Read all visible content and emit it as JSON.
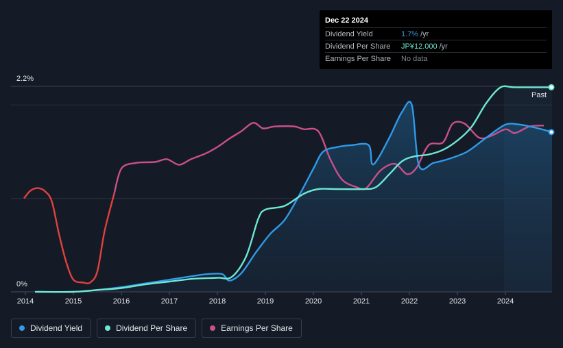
{
  "tooltip": {
    "date": "Dec 22 2024",
    "rows": [
      {
        "label": "Dividend Yield",
        "value": "1.7%",
        "unit": "/yr",
        "color": "#2f9be9"
      },
      {
        "label": "Dividend Per Share",
        "value": "JP¥12.000",
        "unit": "/yr",
        "color": "#6ee7d2"
      },
      {
        "label": "Earnings Per Share",
        "value": "No data",
        "unit": "",
        "color": "#7e848c"
      }
    ]
  },
  "legend": [
    {
      "label": "Dividend Yield",
      "color": "#2f9be9"
    },
    {
      "label": "Dividend Per Share",
      "color": "#6ee7d2"
    },
    {
      "label": "Earnings Per Share",
      "color": "#c9508a"
    }
  ],
  "chart_data": {
    "type": "line",
    "title": "",
    "y_top_label": "2.2%",
    "y_bottom_label": "0%",
    "past_label": "Past",
    "xlim": [
      2013.7,
      2024.97
    ],
    "ylim": [
      0,
      2.2
    ],
    "x_ticks": [
      2014,
      2015,
      2016,
      2017,
      2018,
      2019,
      2020,
      2021,
      2022,
      2023,
      2024
    ],
    "x_tick_labels": [
      "2014",
      "2015",
      "2016",
      "2017",
      "2018",
      "2019",
      "2020",
      "2021",
      "2022",
      "2023",
      "2024"
    ],
    "forecast_start": 2023.97,
    "series": [
      {
        "name": "Dividend Yield",
        "color": "#2f9be9",
        "unit": "%",
        "fill": true,
        "end_marker": true,
        "points": [
          [
            2014.25,
            0.0
          ],
          [
            2015.0,
            0.0
          ],
          [
            2015.5,
            0.02
          ],
          [
            2016.0,
            0.05
          ],
          [
            2016.5,
            0.09
          ],
          [
            2017.0,
            0.13
          ],
          [
            2017.5,
            0.17
          ],
          [
            2017.8,
            0.19
          ],
          [
            2018.1,
            0.19
          ],
          [
            2018.25,
            0.12
          ],
          [
            2018.5,
            0.2
          ],
          [
            2018.8,
            0.42
          ],
          [
            2019.1,
            0.62
          ],
          [
            2019.4,
            0.77
          ],
          [
            2019.7,
            1.03
          ],
          [
            2020.0,
            1.32
          ],
          [
            2020.2,
            1.5
          ],
          [
            2020.5,
            1.55
          ],
          [
            2020.8,
            1.57
          ],
          [
            2021.15,
            1.57
          ],
          [
            2021.22,
            1.37
          ],
          [
            2021.35,
            1.43
          ],
          [
            2021.6,
            1.67
          ],
          [
            2021.85,
            1.93
          ],
          [
            2022.05,
            2.0
          ],
          [
            2022.2,
            1.35
          ],
          [
            2022.5,
            1.38
          ],
          [
            2022.8,
            1.42
          ],
          [
            2023.2,
            1.5
          ],
          [
            2023.6,
            1.65
          ],
          [
            2024.0,
            1.79
          ],
          [
            2024.3,
            1.79
          ],
          [
            2024.6,
            1.76
          ],
          [
            2024.97,
            1.71
          ]
        ]
      },
      {
        "name": "Dividend Per Share",
        "color": "#6ee7d2",
        "unit": "JP¥",
        "fill": false,
        "end_marker": true,
        "points": [
          [
            2014.2,
            0.0
          ],
          [
            2015.0,
            0.0
          ],
          [
            2015.5,
            0.02
          ],
          [
            2016.0,
            0.04
          ],
          [
            2016.5,
            0.08
          ],
          [
            2017.0,
            0.11
          ],
          [
            2017.5,
            0.14
          ],
          [
            2018.0,
            0.15
          ],
          [
            2018.3,
            0.16
          ],
          [
            2018.6,
            0.38
          ],
          [
            2018.85,
            0.78
          ],
          [
            2019.0,
            0.88
          ],
          [
            2019.4,
            0.92
          ],
          [
            2019.8,
            1.05
          ],
          [
            2020.1,
            1.1
          ],
          [
            2020.5,
            1.1
          ],
          [
            2021.0,
            1.1
          ],
          [
            2021.3,
            1.12
          ],
          [
            2021.6,
            1.27
          ],
          [
            2021.85,
            1.4
          ],
          [
            2022.1,
            1.45
          ],
          [
            2022.4,
            1.47
          ],
          [
            2022.7,
            1.52
          ],
          [
            2023.0,
            1.62
          ],
          [
            2023.3,
            1.77
          ],
          [
            2023.6,
            2.02
          ],
          [
            2023.9,
            2.19
          ],
          [
            2024.2,
            2.19
          ],
          [
            2024.97,
            2.19
          ]
        ]
      },
      {
        "name": "Earnings Per Share",
        "color": "#c9508a",
        "color_early": "#e0413f",
        "color_split": 2015.9,
        "unit": "JP¥",
        "fill": false,
        "end_marker": false,
        "points": [
          [
            2013.97,
            1.0
          ],
          [
            2014.1,
            1.08
          ],
          [
            2014.25,
            1.11
          ],
          [
            2014.4,
            1.08
          ],
          [
            2014.55,
            0.97
          ],
          [
            2014.7,
            0.62
          ],
          [
            2014.85,
            0.32
          ],
          [
            2015.0,
            0.13
          ],
          [
            2015.2,
            0.1
          ],
          [
            2015.35,
            0.1
          ],
          [
            2015.5,
            0.22
          ],
          [
            2015.65,
            0.65
          ],
          [
            2015.85,
            1.05
          ],
          [
            2016.0,
            1.32
          ],
          [
            2016.3,
            1.38
          ],
          [
            2016.7,
            1.39
          ],
          [
            2016.95,
            1.42
          ],
          [
            2017.2,
            1.36
          ],
          [
            2017.45,
            1.42
          ],
          [
            2017.75,
            1.48
          ],
          [
            2018.0,
            1.55
          ],
          [
            2018.25,
            1.64
          ],
          [
            2018.5,
            1.72
          ],
          [
            2018.75,
            1.81
          ],
          [
            2018.95,
            1.75
          ],
          [
            2019.2,
            1.77
          ],
          [
            2019.6,
            1.77
          ],
          [
            2019.8,
            1.74
          ],
          [
            2020.1,
            1.72
          ],
          [
            2020.35,
            1.42
          ],
          [
            2020.6,
            1.2
          ],
          [
            2020.9,
            1.12
          ],
          [
            2021.1,
            1.11
          ],
          [
            2021.4,
            1.3
          ],
          [
            2021.7,
            1.37
          ],
          [
            2021.95,
            1.26
          ],
          [
            2022.15,
            1.33
          ],
          [
            2022.4,
            1.57
          ],
          [
            2022.7,
            1.6
          ],
          [
            2022.9,
            1.8
          ],
          [
            2023.15,
            1.8
          ],
          [
            2023.45,
            1.65
          ],
          [
            2023.7,
            1.67
          ],
          [
            2024.0,
            1.74
          ],
          [
            2024.2,
            1.7
          ],
          [
            2024.5,
            1.77
          ],
          [
            2024.8,
            1.78
          ]
        ]
      }
    ]
  }
}
